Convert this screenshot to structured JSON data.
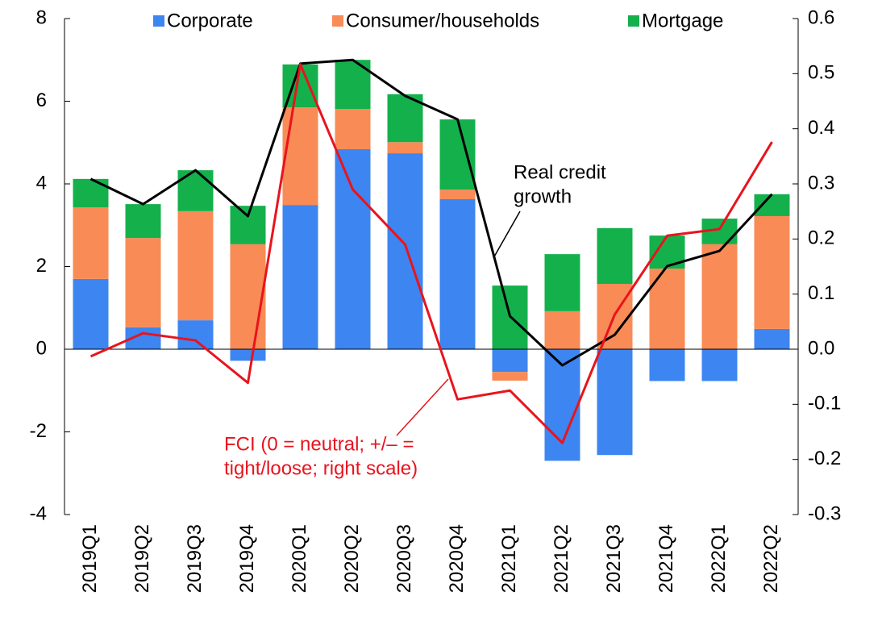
{
  "chart_data": {
    "type": "bar",
    "categories": [
      "2019Q1",
      "2019Q2",
      "2019Q3",
      "2019Q4",
      "2020Q1",
      "2020Q2",
      "2020Q3",
      "2020Q4",
      "2021Q1",
      "2021Q2",
      "2021Q3",
      "2021Q4",
      "2022Q1",
      "2022Q2"
    ],
    "series": [
      {
        "name": "Corporate",
        "color": "#3d85f0",
        "values": [
          1.7,
          0.53,
          0.7,
          -0.28,
          3.49,
          4.84,
          4.74,
          3.63,
          -0.55,
          -2.7,
          -2.56,
          -0.77,
          -0.77,
          0.49
        ]
      },
      {
        "name": "Consumer/households",
        "color": "#f98b56",
        "values": [
          1.73,
          2.16,
          2.64,
          2.54,
          2.36,
          0.97,
          0.27,
          0.23,
          -0.21,
          0.92,
          1.58,
          1.95,
          2.54,
          2.73
        ]
      },
      {
        "name": "Mortgage",
        "color": "#14b04c",
        "values": [
          0.69,
          0.82,
          0.99,
          0.93,
          1.04,
          1.19,
          1.16,
          1.7,
          1.54,
          1.38,
          1.35,
          0.8,
          0.62,
          0.53
        ]
      }
    ],
    "lines": [
      {
        "color": "#000000",
        "values": [
          4.12,
          3.51,
          4.33,
          3.22,
          6.91,
          7.0,
          6.13,
          5.56,
          0.8,
          -0.39,
          0.35,
          2.01,
          2.38,
          3.75
        ]
      },
      {
        "color": "#e8141d",
        "axis": "y2",
        "values": [
          -0.013,
          0.029,
          0.016,
          -0.061,
          0.517,
          0.29,
          0.19,
          -0.091,
          -0.075,
          -0.17,
          0.063,
          0.206,
          0.218,
          0.376
        ]
      }
    ],
    "annotations": [
      {
        "lines": [
          "Real credit",
          "growth"
        ],
        "color": "#000000"
      },
      {
        "lines": [
          "FCI (0 = neutral; +/– =",
          "tight/loose; right scale)"
        ],
        "color": "#e8141d"
      }
    ],
    "ylim": [
      -4,
      8
    ],
    "yticks": [
      -4,
      -2,
      0,
      2,
      4,
      6,
      8
    ],
    "y2lim": [
      -0.3,
      0.6
    ],
    "y2ticks": [
      -0.3,
      -0.2,
      -0.1,
      {
        "value": 0,
        "label": "0.0"
      },
      0.1,
      0.2,
      0.3,
      0.4,
      0.5,
      0.6
    ],
    "legend": "top"
  }
}
